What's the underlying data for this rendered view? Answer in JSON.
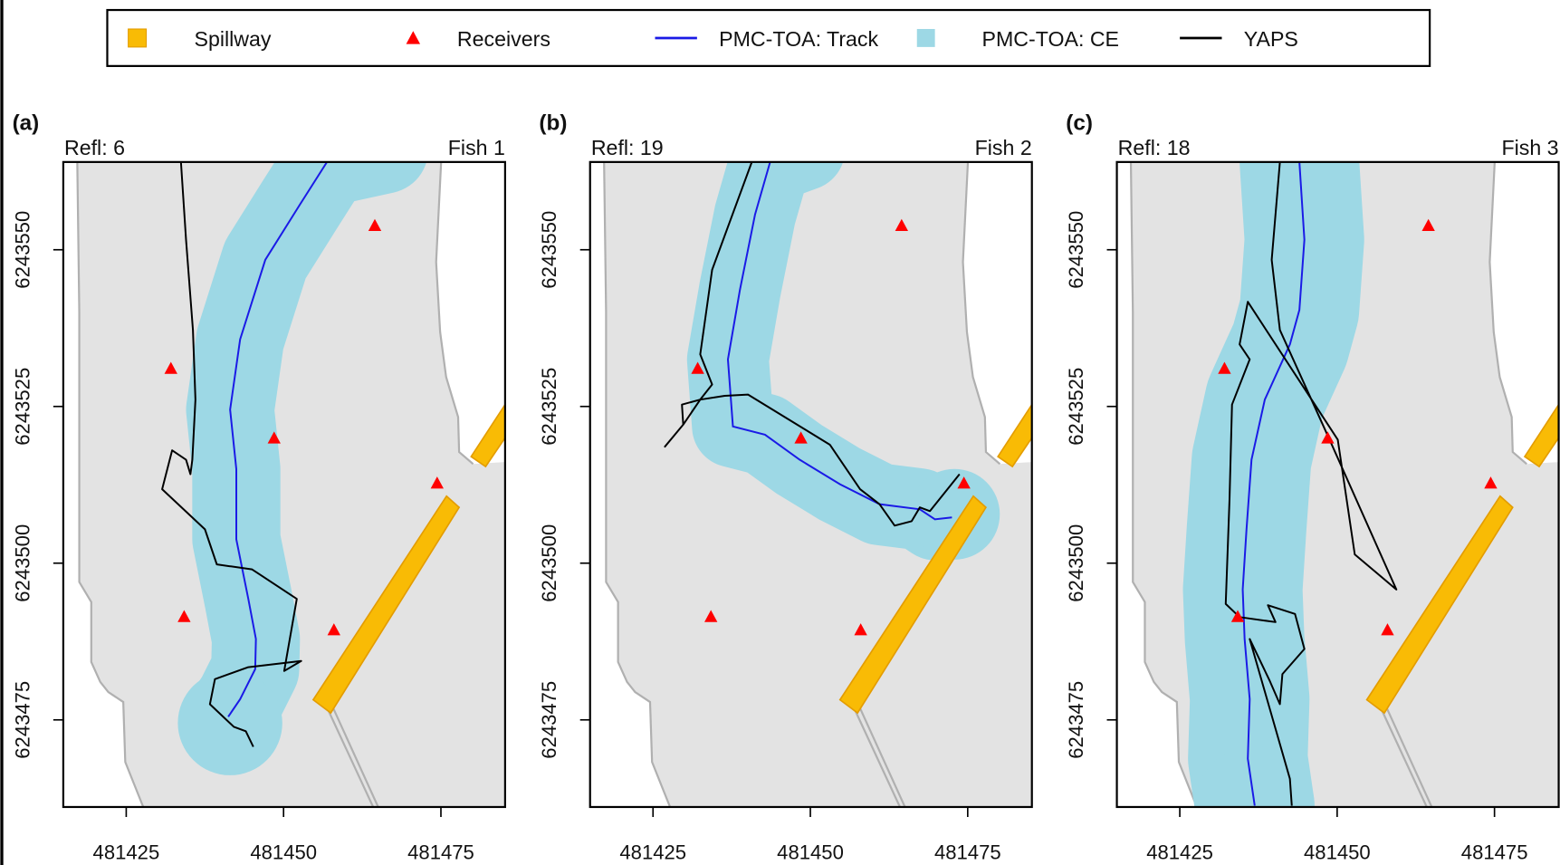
{
  "legend": {
    "items": [
      {
        "label": "Spillway",
        "icon": "square",
        "color": "#f9bb05"
      },
      {
        "label": "Receivers",
        "icon": "triangle",
        "color": "#ff0000"
      },
      {
        "label": "PMC-TOA: Track",
        "icon": "line",
        "color": "#1a1ae6"
      },
      {
        "label": "PMC-TOA: CE",
        "icon": "square",
        "color": "#9dd8e5"
      },
      {
        "label": "YAPS",
        "icon": "line",
        "color": "#000000"
      }
    ]
  },
  "chart_data": {
    "type": "map",
    "xlim": [
      481415,
      481485.2
    ],
    "ylim": [
      6243461.1,
      6243564
    ],
    "x_ticks": [
      481425,
      481450,
      481475
    ],
    "y_ticks": [
      6243475,
      6243500,
      6243525,
      6243550
    ],
    "x_tick_labels": [
      "481425",
      "481450",
      "481475"
    ],
    "y_tick_labels": [
      "6243475",
      "6243500",
      "6243525",
      "6243550"
    ],
    "colors": {
      "land": "#e3e3e3",
      "shore": "#b0b0b0",
      "ce": "#9dd8e5",
      "track": "#1a1ae6",
      "yaps": "#000000",
      "receiver": "#ff0000",
      "spillway": "#f9bb05",
      "spillway_edge": "#e39c00"
    },
    "receivers": [
      [
        481464.5,
        6243553.8
      ],
      [
        481432.1,
        6243531.0
      ],
      [
        481448.5,
        6243519.9
      ],
      [
        481474.4,
        6243512.7
      ],
      [
        481434.2,
        6243491.4
      ],
      [
        481458.0,
        6243489.3
      ]
    ],
    "spillways": [
      [
        [
          481475.9,
          6243510.7
        ],
        [
          481477.9,
          6243508.9
        ],
        [
          481457.5,
          6243476.1
        ],
        [
          481454.7,
          6243478.2
        ]
      ],
      [
        [
          481485.2,
          6243525.3
        ],
        [
          481485.2,
          6243520.0
        ],
        [
          481482.1,
          6243515.4
        ],
        [
          481479.8,
          6243517.0
        ]
      ]
    ],
    "panels": [
      {
        "label": "(a)",
        "refl": "Refl:  6",
        "fish": "Fish 1",
        "ce_radius": 7,
        "ce_end": {
          "center": [
            481441.5,
            6243474.5
          ],
          "radius": 8.3
        },
        "track": [
          [
            481456.9,
            6243564.0
          ],
          [
            481452.6,
            6243557.2
          ],
          [
            481447.1,
            6243548.4
          ],
          [
            481443.1,
            6243535.7
          ],
          [
            481441.5,
            6243524.5
          ],
          [
            481442.5,
            6243515.0
          ],
          [
            481442.5,
            6243503.8
          ],
          [
            481444.4,
            6243494.3
          ],
          [
            481445.6,
            6243487.9
          ],
          [
            481445.5,
            6243483.1
          ],
          [
            481443.1,
            6243478.3
          ],
          [
            481441.2,
            6243475.5
          ]
        ],
        "ce_extra": [
          [
            481466.0,
            6243566.0
          ],
          [
            481456.9,
            6243564.0
          ]
        ],
        "yaps": [
          [
            481433.7,
            6243564.0
          ],
          [
            481434.5,
            6243551.6
          ],
          [
            481435.6,
            6243537.2
          ],
          [
            481436.0,
            6243526.1
          ],
          [
            481435.5,
            6243516.5
          ],
          [
            481435.2,
            6243514.2
          ],
          [
            481434.5,
            6243516.5
          ],
          [
            481432.3,
            6243518.0
          ],
          [
            481430.7,
            6243511.8
          ],
          [
            481437.5,
            6243505.4
          ],
          [
            481439.4,
            6243499.8
          ],
          [
            481445.0,
            6243499.0
          ],
          [
            481452.1,
            6243494.3
          ],
          [
            481450.1,
            6243482.8
          ],
          [
            481452.8,
            6243484.4
          ],
          [
            481444.4,
            6243483.4
          ],
          [
            481439.1,
            6243481.5
          ],
          [
            481438.3,
            6243477.5
          ],
          [
            481442.1,
            6243473.9
          ],
          [
            481444.0,
            6243473.2
          ],
          [
            481445.2,
            6243470.7
          ]
        ]
      },
      {
        "label": "(b)",
        "refl": "Refl:  19",
        "fish": "Fish 2",
        "ce_radius": 6.5,
        "ce_end": {
          "center": [
            481472.9,
            6243507.8
          ],
          "radius": 7.2
        },
        "track": [
          [
            481443.6,
            6243564.0
          ],
          [
            481441.2,
            6243555.6
          ],
          [
            481438.8,
            6243543.6
          ],
          [
            481436.9,
            6243532.5
          ],
          [
            481437.7,
            6243521.8
          ],
          [
            481442.8,
            6243520.5
          ],
          [
            481448.3,
            6243516.5
          ],
          [
            481454.7,
            6243512.6
          ],
          [
            481461.0,
            6243509.4
          ],
          [
            481467.4,
            6243508.6
          ],
          [
            481469.8,
            6243507.0
          ],
          [
            481472.5,
            6243507.3
          ]
        ],
        "ce_extra": [
          [
            481449.0,
            6243566.0
          ],
          [
            481443.6,
            6243564.0
          ]
        ],
        "yaps": [
          [
            481440.7,
            6243564.0
          ],
          [
            481434.4,
            6243546.8
          ],
          [
            481432.5,
            6243533.3
          ],
          [
            481434.4,
            6243528.5
          ],
          [
            481432.5,
            6243526.1
          ],
          [
            481429.6,
            6243525.3
          ],
          [
            481429.8,
            6243522.1
          ],
          [
            481426.9,
            6243518.6
          ],
          [
            481429.8,
            6243522.1
          ],
          [
            481432.5,
            6243526.1
          ],
          [
            481436.4,
            6243526.7
          ],
          [
            481440.1,
            6243526.9
          ],
          [
            481453.1,
            6243518.9
          ],
          [
            481457.9,
            6243511.8
          ],
          [
            481461.0,
            6243509.4
          ],
          [
            481463.4,
            6243506.0
          ],
          [
            481466.1,
            6243506.7
          ],
          [
            481467.4,
            6243508.9
          ],
          [
            481469.0,
            6243508.3
          ],
          [
            481473.7,
            6243514.2
          ]
        ]
      },
      {
        "label": "(c)",
        "refl": "Refl:  18",
        "fish": "Fish 3",
        "ce_radius": 9.5,
        "ce_end": {
          "center": [
            481436.9,
            6243461.3
          ],
          "radius": 9.5
        },
        "track": [
          [
            481444.0,
            6243564.0
          ],
          [
            481444.8,
            6243551.6
          ],
          [
            481444.0,
            6243540.4
          ],
          [
            481442.5,
            6243534.9
          ],
          [
            481438.5,
            6243526.1
          ],
          [
            481436.4,
            6243516.5
          ],
          [
            481435.6,
            6243505.4
          ],
          [
            481435.0,
            6243495.8
          ],
          [
            481435.3,
            6243487.9
          ],
          [
            481436.1,
            6243478.3
          ],
          [
            481435.8,
            6243468.8
          ],
          [
            481436.9,
            6243461.3
          ]
        ],
        "ce_extra": [
          [
            481444.0,
            6243566.0
          ],
          [
            481444.0,
            6243564.0
          ]
        ],
        "yaps": [
          [
            481440.9,
            6243564.0
          ],
          [
            481439.6,
            6243548.4
          ],
          [
            481440.9,
            6243537.2
          ],
          [
            481448.8,
            6243519.7
          ],
          [
            481459.4,
            6243495.8
          ],
          [
            481452.8,
            6243501.4
          ],
          [
            481450.1,
            6243519.7
          ],
          [
            481435.8,
            6243541.7
          ],
          [
            481434.5,
            6243534.9
          ],
          [
            481436.1,
            6243532.5
          ],
          [
            481433.3,
            6243525.3
          ],
          [
            481432.9,
            6243510.2
          ],
          [
            481432.3,
            6243493.5
          ],
          [
            481434.5,
            6243491.4
          ],
          [
            481440.2,
            6243490.6
          ],
          [
            481439.0,
            6243493.3
          ],
          [
            481443.3,
            6243491.9
          ],
          [
            481444.8,
            6243486.3
          ],
          [
            481441.3,
            6243482.3
          ],
          [
            481440.9,
            6243477.5
          ],
          [
            481439.3,
            6243481.2
          ],
          [
            481436.1,
            6243487.9
          ],
          [
            481442.5,
            6243465.6
          ],
          [
            481442.8,
            6243461.3
          ]
        ]
      }
    ]
  }
}
